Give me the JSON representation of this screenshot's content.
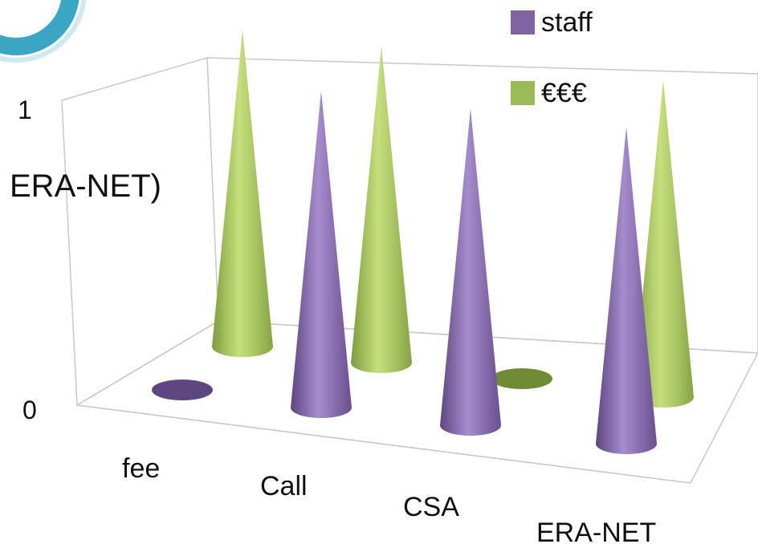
{
  "chart_data": {
    "type": "bar",
    "bar_shape": "cone-3d",
    "categories": [
      "fee",
      "Call",
      "CSA",
      "ERA-NET"
    ],
    "series": [
      {
        "name": "staff",
        "color": "#8064a2",
        "values": [
          0,
          1,
          1,
          1
        ]
      },
      {
        "name": "€€€",
        "color": "#9bbb59",
        "values": [
          1,
          1,
          0,
          1
        ]
      }
    ],
    "ylim": [
      0,
      1
    ],
    "yticks": [
      "0",
      "1"
    ],
    "legend_position": "top-right",
    "grid": false
  },
  "side_text": "ERA-NET)"
}
